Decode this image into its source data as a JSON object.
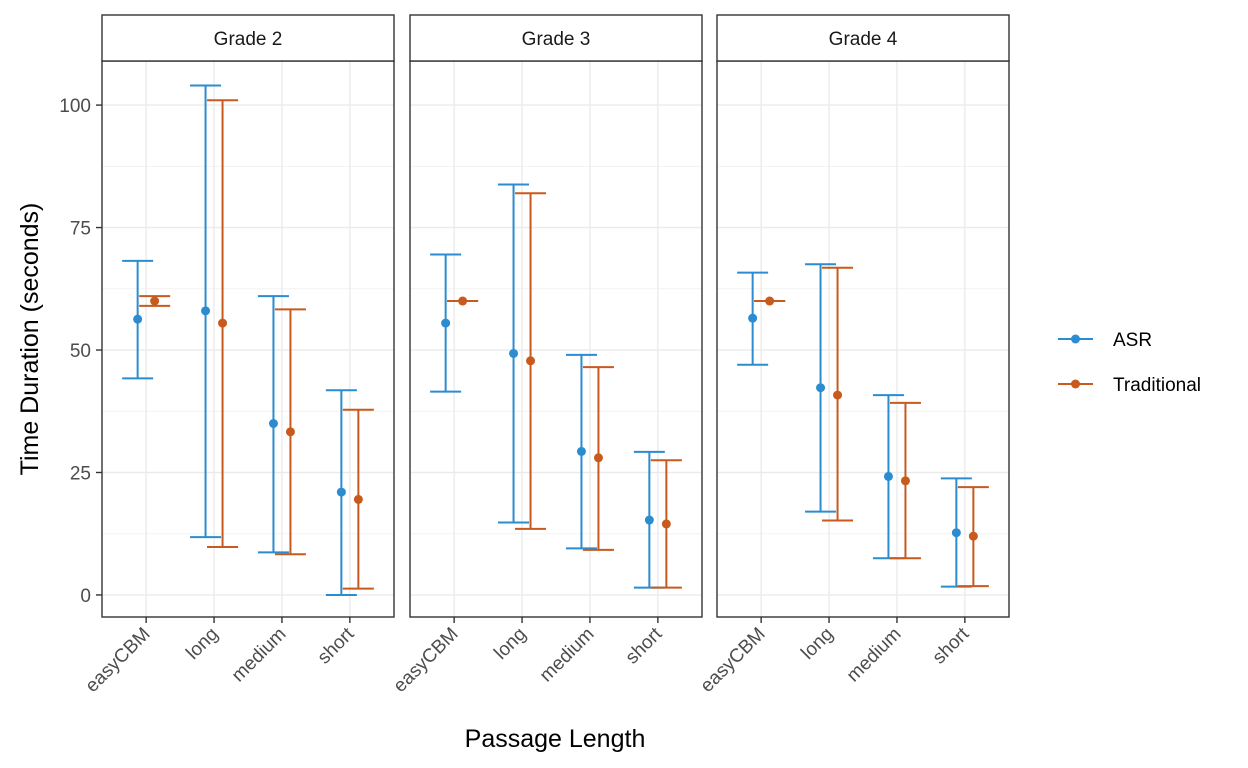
{
  "chart_data": {
    "type": "errorbar",
    "xlabel": "Passage Length",
    "ylabel": "Time Duration (seconds)",
    "ylim": [
      -4.5,
      109
    ],
    "yticks": [
      0,
      25,
      50,
      75,
      100
    ],
    "categories": [
      "easyCBM",
      "long",
      "medium",
      "short"
    ],
    "grid": true,
    "legend_position": "right",
    "series_colors": {
      "ASR": "#2b8cd0",
      "Traditional": "#c85a1e"
    },
    "series": [
      {
        "name": "ASR"
      },
      {
        "name": "Traditional"
      }
    ],
    "panels": [
      {
        "title": "Grade 2",
        "ASR": [
          {
            "category": "easyCBM",
            "mean": 56.3,
            "lower": 44.2,
            "upper": 68.2
          },
          {
            "category": "long",
            "mean": 58.0,
            "lower": 11.8,
            "upper": 104.0
          },
          {
            "category": "medium",
            "mean": 35.0,
            "lower": 8.7,
            "upper": 61.0
          },
          {
            "category": "short",
            "mean": 21.0,
            "lower": 0.0,
            "upper": 41.8
          }
        ],
        "Traditional": [
          {
            "category": "easyCBM",
            "mean": 60.0,
            "lower": 59.0,
            "upper": 61.0
          },
          {
            "category": "long",
            "mean": 55.5,
            "lower": 9.8,
            "upper": 101.0
          },
          {
            "category": "medium",
            "mean": 33.3,
            "lower": 8.3,
            "upper": 58.3
          },
          {
            "category": "short",
            "mean": 19.5,
            "lower": 1.3,
            "upper": 37.8
          }
        ]
      },
      {
        "title": "Grade 3",
        "ASR": [
          {
            "category": "easyCBM",
            "mean": 55.5,
            "lower": 41.5,
            "upper": 69.5
          },
          {
            "category": "long",
            "mean": 49.3,
            "lower": 14.8,
            "upper": 83.8
          },
          {
            "category": "medium",
            "mean": 29.3,
            "lower": 9.5,
            "upper": 49.0
          },
          {
            "category": "short",
            "mean": 15.3,
            "lower": 1.5,
            "upper": 29.2
          }
        ],
        "Traditional": [
          {
            "category": "easyCBM",
            "mean": 60.0,
            "lower": 60.0,
            "upper": 60.0
          },
          {
            "category": "long",
            "mean": 47.8,
            "lower": 13.5,
            "upper": 82.0
          },
          {
            "category": "medium",
            "mean": 28.0,
            "lower": 9.2,
            "upper": 46.5
          },
          {
            "category": "short",
            "mean": 14.5,
            "lower": 1.5,
            "upper": 27.5
          }
        ]
      },
      {
        "title": "Grade 4",
        "ASR": [
          {
            "category": "easyCBM",
            "mean": 56.5,
            "lower": 47.0,
            "upper": 65.8
          },
          {
            "category": "long",
            "mean": 42.3,
            "lower": 17.0,
            "upper": 67.5
          },
          {
            "category": "medium",
            "mean": 24.2,
            "lower": 7.5,
            "upper": 40.8
          },
          {
            "category": "short",
            "mean": 12.7,
            "lower": 1.7,
            "upper": 23.8
          }
        ],
        "Traditional": [
          {
            "category": "easyCBM",
            "mean": 60.0,
            "lower": 60.0,
            "upper": 60.0
          },
          {
            "category": "long",
            "mean": 40.8,
            "lower": 15.2,
            "upper": 66.8
          },
          {
            "category": "medium",
            "mean": 23.3,
            "lower": 7.5,
            "upper": 39.2
          },
          {
            "category": "short",
            "mean": 12.0,
            "lower": 1.8,
            "upper": 22.0
          }
        ]
      }
    ]
  }
}
